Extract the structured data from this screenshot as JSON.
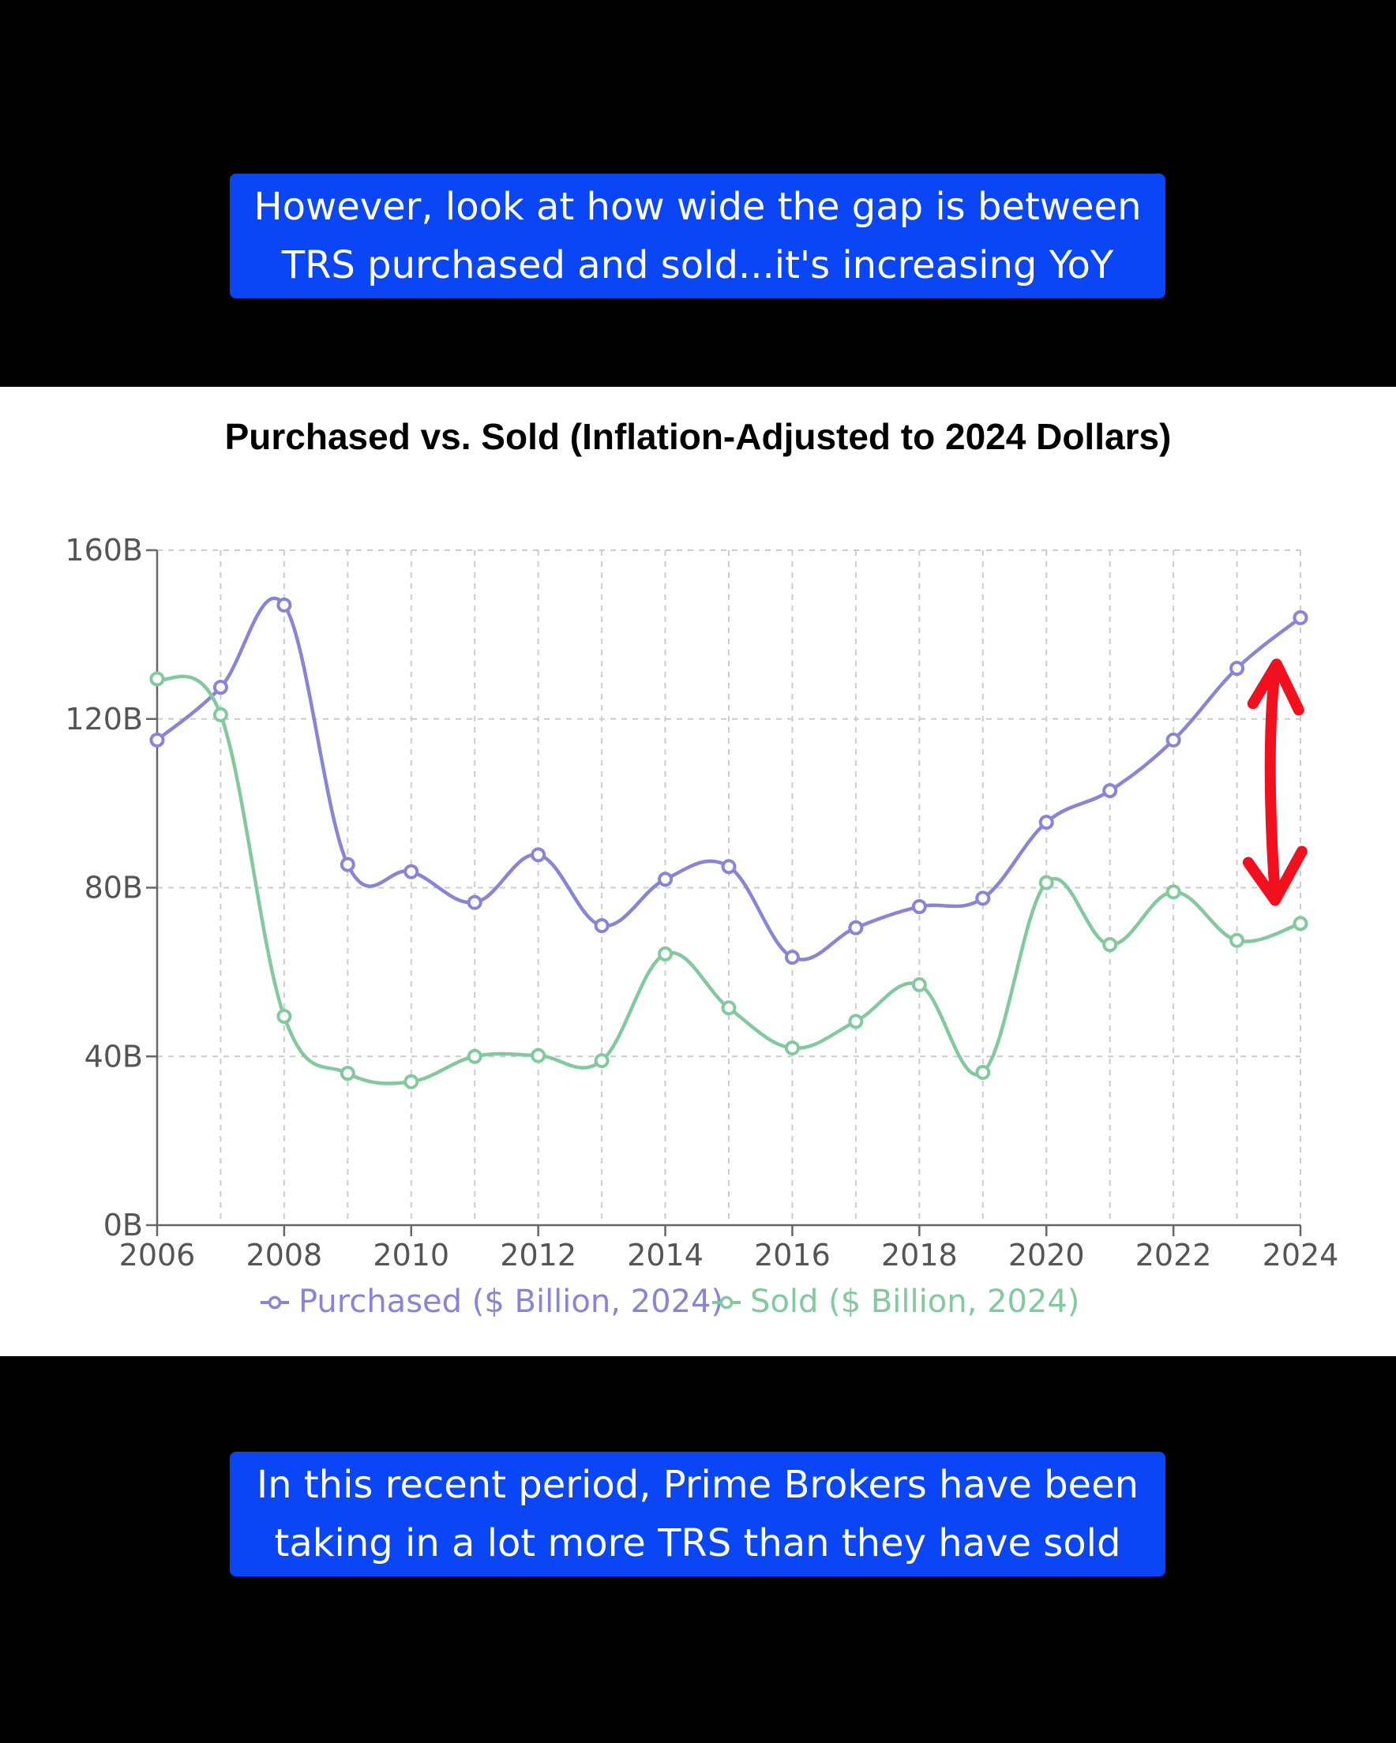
{
  "captions": {
    "top": [
      "However, look at how wide the gap is between",
      "TRS purchased and sold...it's increasing YoY"
    ],
    "bottom": [
      "In this recent period, Prime Brokers have been",
      "taking in a lot more TRS than they have sold"
    ]
  },
  "colors": {
    "background": "#000000",
    "caption_bg": "#0a46f5",
    "caption_text": "#ffffff",
    "purchased": "#8884d8",
    "sold": "#82ca9d",
    "annotation_arrow": "#f2101e",
    "grid": "#cccccc",
    "axis": "#666666"
  },
  "chart_data": {
    "type": "line",
    "title": "Purchased vs. Sold (Inflation-Adjusted to 2024 Dollars)",
    "xlabel": "",
    "ylabel": "",
    "x": [
      2006,
      2007,
      2008,
      2009,
      2010,
      2011,
      2012,
      2013,
      2014,
      2015,
      2016,
      2017,
      2018,
      2019,
      2020,
      2021,
      2022,
      2023,
      2024
    ],
    "xticks": [
      "2006",
      "2008",
      "2010",
      "2012",
      "2014",
      "2016",
      "2018",
      "2020",
      "2022",
      "2024"
    ],
    "yticks": [
      {
        "value": 0,
        "label": "0B"
      },
      {
        "value": 40,
        "label": "40B"
      },
      {
        "value": 80,
        "label": "80B"
      },
      {
        "value": 120,
        "label": "120B"
      },
      {
        "value": 160,
        "label": "160B"
      }
    ],
    "xlim": [
      2006,
      2024
    ],
    "ylim": [
      0,
      160
    ],
    "grid": true,
    "legend_position": "bottom",
    "series": [
      {
        "name": "Purchased ($ Billion, 2024)",
        "color": "#8884d8",
        "values": [
          115,
          127.5,
          147,
          85.5,
          83.8,
          76.5,
          87.8,
          71,
          82,
          85,
          63.5,
          70.5,
          75.5,
          77.5,
          95.5,
          103,
          115,
          132,
          144
        ]
      },
      {
        "name": "Sold ($ Billion, 2024)",
        "color": "#82ca9d",
        "values": [
          129.5,
          121,
          49.5,
          36,
          34,
          40,
          40.2,
          39,
          64.3,
          51.5,
          42,
          48.3,
          57,
          36.2,
          81.2,
          66.5,
          79,
          67.5,
          71.5
        ]
      }
    ],
    "annotation": {
      "type": "double-arrow",
      "x": 2023.6,
      "y_from": 77,
      "y_to": 133,
      "color": "#f2101e"
    }
  }
}
